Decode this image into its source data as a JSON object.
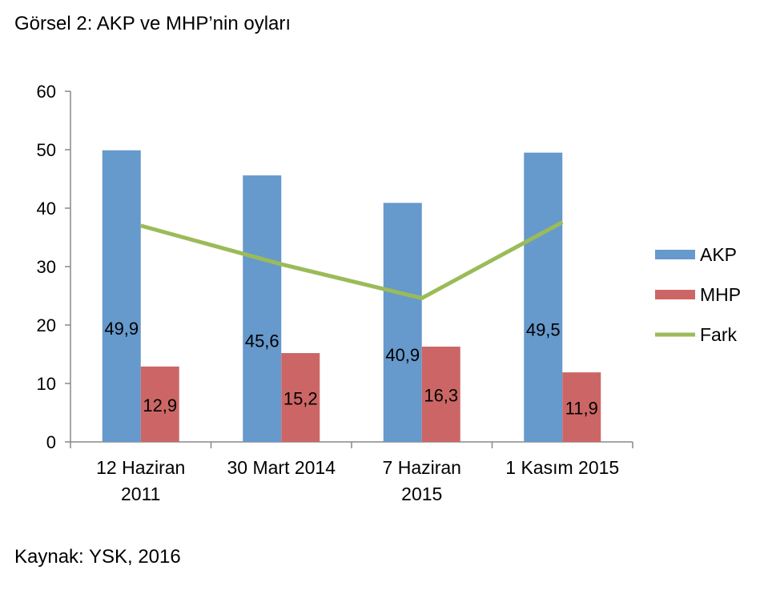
{
  "page": {
    "title": "Görsel 2: AKP ve MHP’nin oyları",
    "source": "Kaynak: YSK, 2016"
  },
  "chart_data": {
    "type": "bar",
    "title": "",
    "xlabel": "",
    "ylabel": "",
    "ylim": [
      0,
      60
    ],
    "yticks": [
      0,
      10,
      20,
      30,
      40,
      50,
      60
    ],
    "categories": [
      [
        "12 Haziran",
        "2011"
      ],
      [
        "30 Mart 2014"
      ],
      [
        "7 Haziran",
        "2015"
      ],
      [
        "1 Kasım 2015"
      ]
    ],
    "series": [
      {
        "name": "AKP",
        "kind": "bar",
        "color": "#6699cc",
        "values": [
          49.9,
          45.6,
          40.9,
          49.5
        ],
        "labels": [
          "49,9",
          "45,6",
          "40,9",
          "49,5"
        ]
      },
      {
        "name": "MHP",
        "kind": "bar",
        "color": "#cc6666",
        "values": [
          12.9,
          15.2,
          16.3,
          11.9
        ],
        "labels": [
          "12,9",
          "15,2",
          "16,3",
          "11,9"
        ]
      },
      {
        "name": "Fark",
        "kind": "line",
        "color": "#9bbb59",
        "values": [
          37.0,
          30.4,
          24.6,
          37.6
        ]
      }
    ],
    "legend": {
      "position": "right"
    },
    "grid": false
  }
}
